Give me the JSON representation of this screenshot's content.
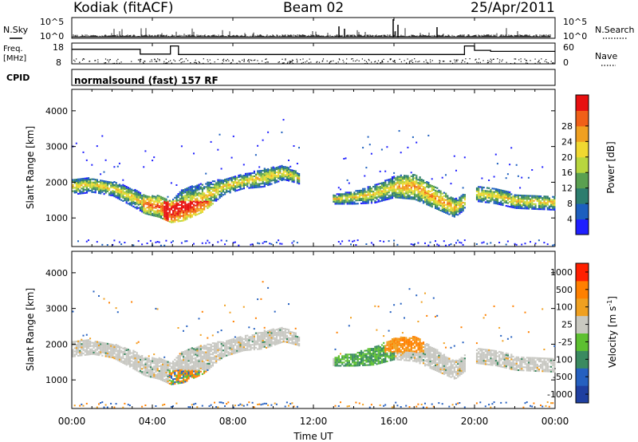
{
  "header": {
    "station": "Kodiak (fitACF)",
    "beam": "Beam 02",
    "date": "25/Apr/2011"
  },
  "colors": {
    "power_scale": [
      "#1f1fff",
      "#1d5fbf",
      "#2c7d6e",
      "#5aa050",
      "#b8d63e",
      "#f0d830",
      "#f0a020",
      "#f06018",
      "#e81010"
    ],
    "velocity_scale": [
      "#1f3fa0",
      "#2560c0",
      "#3a8a60",
      "#5dc030",
      "#c8c8c0",
      "#f0a020",
      "#ff8000",
      "#ff2000"
    ],
    "gray": "#c8c8c2"
  },
  "chart_data": [
    {
      "type": "line",
      "name": "noise",
      "left_label": "N.Sky",
      "right_label": "N.Search",
      "left_ticks": [
        "10^5",
        "10^0"
      ],
      "right_ticks": [
        "10^5",
        "10^0"
      ]
    },
    {
      "type": "line",
      "name": "frequency",
      "left_label_top": "Freq.",
      "left_label_unit": "[MHz]",
      "right_label": "Nave",
      "left_ticks": [
        "18",
        "8"
      ],
      "right_ticks": [
        "60",
        "0"
      ],
      "freq_steps": [
        {
          "t0": 0.0,
          "t1": 3.4,
          "freq": 15.0
        },
        {
          "t0": 3.4,
          "t1": 4.9,
          "freq": 12.7
        },
        {
          "t0": 4.9,
          "t1": 5.3,
          "freq": 16.6
        },
        {
          "t0": 5.3,
          "t1": 19.5,
          "freq": 12.5
        },
        {
          "t0": 19.5,
          "t1": 20.0,
          "freq": 16.6
        },
        {
          "t0": 20.0,
          "t1": 20.8,
          "freq": 14.5
        },
        {
          "t0": 20.8,
          "t1": 24.0,
          "freq": 14.0
        }
      ]
    },
    {
      "type": "heatmap",
      "name": "cpid",
      "cpid_label": "CPID",
      "cpid_text": "normalsound (fast) 157 RF"
    },
    {
      "type": "heatmap",
      "name": "power",
      "ylabel": "Slant Range [km]",
      "yticks": [
        "1000",
        "2000",
        "3000",
        "4000"
      ],
      "ytick_values": [
        1000,
        2000,
        3000,
        4000
      ],
      "ylim": [
        200,
        4600
      ],
      "xlim": [
        0,
        24
      ],
      "colorbar_title": "Power [dB]",
      "colorbar_ticks": [
        "4",
        "8",
        "12",
        "16",
        "20",
        "24",
        "28"
      ]
    },
    {
      "type": "heatmap",
      "name": "velocity",
      "ylabel": "Slant Range [km]",
      "yticks": [
        "1000",
        "2000",
        "3000",
        "4000"
      ],
      "ytick_values": [
        1000,
        2000,
        3000,
        4000
      ],
      "ylim": [
        200,
        4600
      ],
      "xlim": [
        0,
        24
      ],
      "xticks": [
        "00:00",
        "04:00",
        "08:00",
        "12:00",
        "16:00",
        "20:00",
        "00:00"
      ],
      "xtick_values": [
        0,
        4,
        8,
        12,
        16,
        20,
        24
      ],
      "xlabel": "Time UT",
      "colorbar_title": "Velocity [m s",
      "colorbar_sup": "-1",
      "colorbar_suffix": "]",
      "colorbar_ticks": [
        "1000",
        "500",
        "100",
        "25",
        "-25",
        "-100",
        "-500",
        "-1000"
      ]
    }
  ]
}
